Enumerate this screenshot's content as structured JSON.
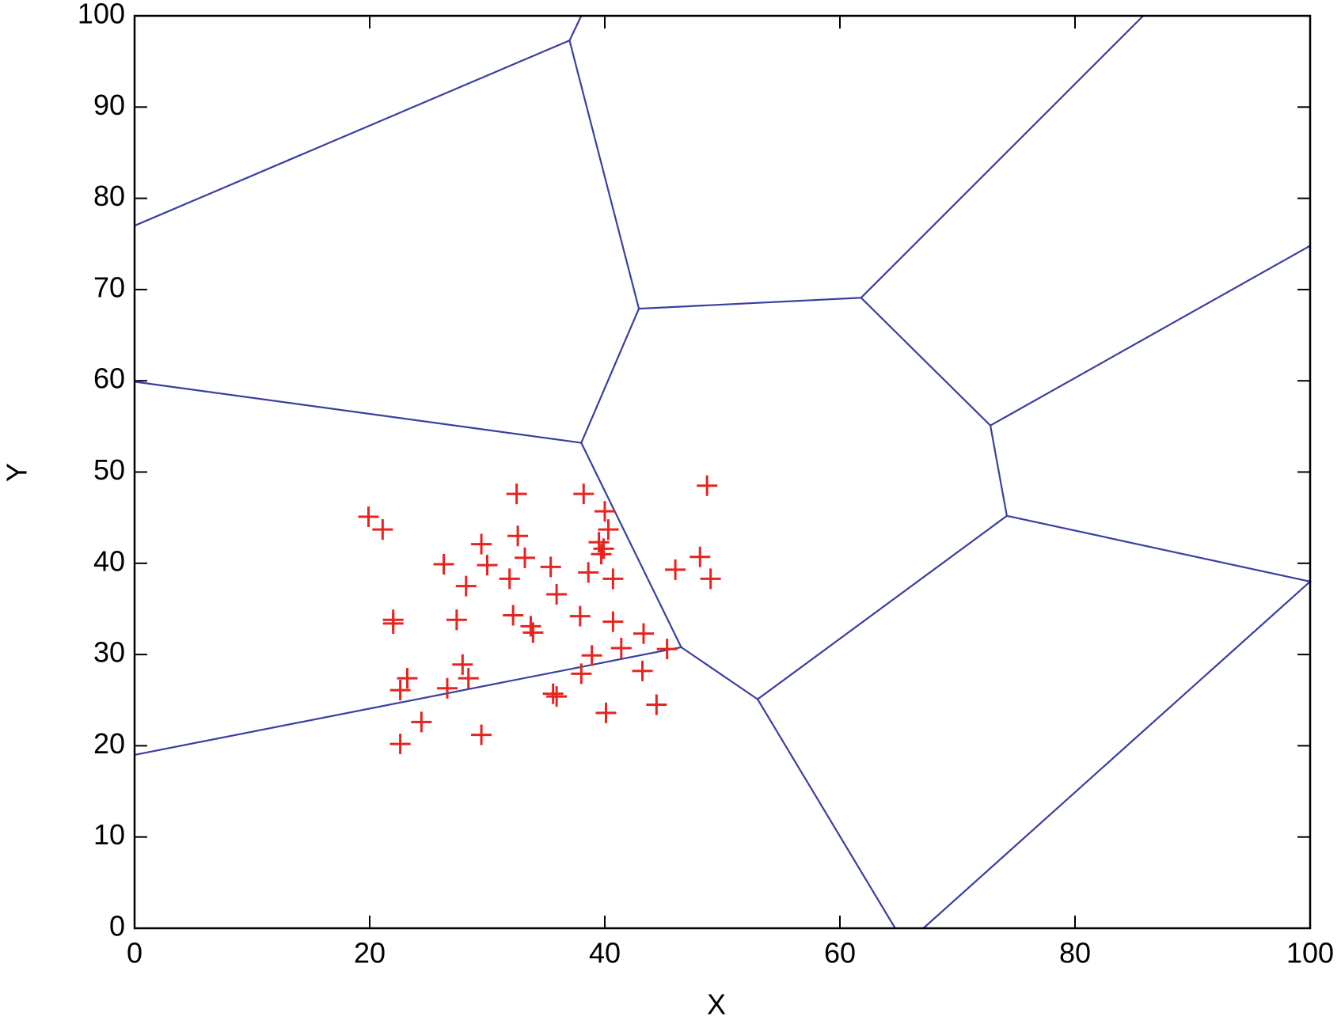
{
  "chart_data": {
    "type": "scatter",
    "xlabel": "X",
    "ylabel": "Y",
    "xlim": [
      0,
      100
    ],
    "ylim": [
      0,
      100
    ],
    "xticks": [
      0,
      20,
      40,
      60,
      80,
      100
    ],
    "yticks": [
      0,
      10,
      20,
      30,
      40,
      50,
      60,
      70,
      80,
      90,
      100
    ],
    "points": {
      "color": "#e8231f",
      "x": [
        19.9,
        21.1,
        32.5,
        38.2,
        48.7,
        40.0,
        40.3,
        32.6,
        39.5,
        39.9,
        29.5,
        33.2,
        26.3,
        30.0,
        35.4,
        31.9,
        38.6,
        40.7,
        46.0,
        48.1,
        49.0,
        28.2,
        35.9,
        39.7,
        22.0,
        22.0,
        27.4,
        32.2,
        33.7,
        33.9,
        37.9,
        40.7,
        43.3,
        41.4,
        45.3,
        38.9,
        27.9,
        23.2,
        28.4,
        22.6,
        26.6,
        38.0,
        43.2,
        35.6,
        35.9,
        44.4,
        40.1,
        24.4,
        29.5,
        22.6
      ],
      "y": [
        45.1,
        43.7,
        47.6,
        47.6,
        48.5,
        45.7,
        43.7,
        43.0,
        42.3,
        41.6,
        42.1,
        40.6,
        39.9,
        39.8,
        39.6,
        38.3,
        39.0,
        38.3,
        39.3,
        40.7,
        38.3,
        37.5,
        36.6,
        41.0,
        33.8,
        33.4,
        33.8,
        34.3,
        33.1,
        32.4,
        34.2,
        33.6,
        32.3,
        30.7,
        30.6,
        29.9,
        28.9,
        27.4,
        27.4,
        26.1,
        26.3,
        27.9,
        28.2,
        25.7,
        25.4,
        24.5,
        23.6,
        22.6,
        21.2,
        20.2
      ]
    },
    "edge_color": "#3a3fa0",
    "edges": [
      {
        "x": [
          0,
          37.0,
          38.0
        ],
        "y": [
          77.0,
          97.3,
          100
        ]
      },
      {
        "x": [
          37.0,
          42.9,
          61.8,
          85.8
        ],
        "y": [
          97.3,
          67.9,
          69.1,
          100
        ]
      },
      {
        "x": [
          61.8,
          72.8,
          100
        ],
        "y": [
          69.1,
          55.1,
          74.8
        ]
      },
      {
        "x": [
          72.8,
          74.2,
          100,
          67.1
        ],
        "y": [
          55.1,
          45.2,
          38.0,
          0
        ]
      },
      {
        "x": [
          74.2,
          53.0,
          64.7
        ],
        "y": [
          45.2,
          25.1,
          0
        ]
      },
      {
        "x": [
          53.0,
          46.5,
          0
        ],
        "y": [
          25.1,
          30.8,
          19.0
        ]
      },
      {
        "x": [
          42.9,
          38.0,
          0
        ],
        "y": [
          67.9,
          53.2,
          59.9
        ]
      },
      {
        "x": [
          38.0,
          46.5
        ],
        "y": [
          53.2,
          30.8
        ]
      }
    ]
  }
}
